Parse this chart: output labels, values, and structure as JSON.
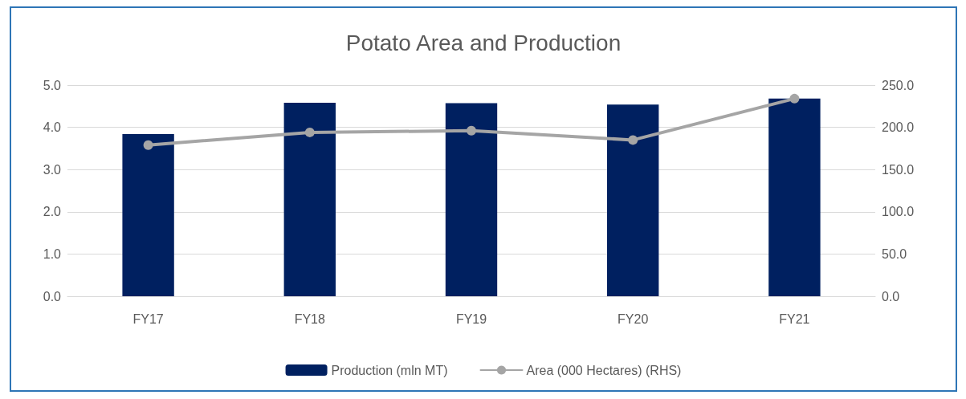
{
  "chart_data": {
    "type": "bar",
    "title": "Potato Area and Production",
    "categories": [
      "FY17",
      "FY18",
      "FY19",
      "FY20",
      "FY21"
    ],
    "series": [
      {
        "name": "Production (mln MT)",
        "color": "#002060",
        "values": [
          3.84,
          4.58,
          4.57,
          4.54,
          4.68
        ]
      },
      {
        "name": "Area (000 Hectares) (RHS)",
        "type": "line",
        "axis": "y2",
        "color": "#a5a5a5",
        "values": [
          179,
          194,
          196,
          185,
          234
        ]
      }
    ],
    "ylim": [
      0,
      5
    ],
    "yticks": [
      {
        "value": 0,
        "label": "0.0"
      },
      {
        "value": 1,
        "label": "1.0"
      },
      {
        "value": 2,
        "label": "2.0"
      },
      {
        "value": 3,
        "label": "3.0"
      },
      {
        "value": 4,
        "label": "4.0"
      },
      {
        "value": 5,
        "label": "5.0"
      }
    ],
    "y2lim": [
      0,
      250
    ],
    "y2ticks": [
      {
        "value": 0,
        "label": "0.0"
      },
      {
        "value": 50,
        "label": "50.0"
      },
      {
        "value": 100,
        "label": "100.0"
      },
      {
        "value": 150,
        "label": "150.0"
      },
      {
        "value": 200,
        "label": "200.0"
      },
      {
        "value": 250,
        "label": "250.0"
      }
    ],
    "grid": "y",
    "legend": "bottom",
    "marker": "circle"
  }
}
